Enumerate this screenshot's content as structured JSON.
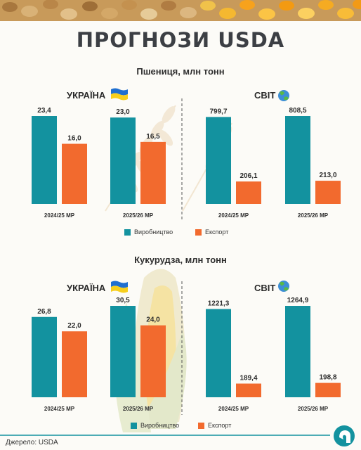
{
  "page": {
    "title": "ПРОГНОЗИ USDA",
    "source": "Джерело: USDA"
  },
  "colors": {
    "production": "#13929f",
    "export": "#f26a2e",
    "text": "#2e2e2e",
    "title": "#3c3f44"
  },
  "chart_data": [
    {
      "type": "bar",
      "title": "Пшениця, млн тонн",
      "panel": "УКРАЇНА",
      "categories": [
        "2024/25 МР",
        "2025/26 МР"
      ],
      "series": [
        {
          "name": "Виробництво",
          "values": [
            23.4,
            23.0
          ],
          "labels": [
            "23,4",
            "23,0"
          ]
        },
        {
          "name": "Експорт",
          "values": [
            16.0,
            16.5
          ],
          "labels": [
            "16,0",
            "16,5"
          ]
        }
      ]
    },
    {
      "type": "bar",
      "title": "Пшениця, млн тонн",
      "panel": "СВІТ",
      "categories": [
        "2024/25 МР",
        "2025/26 МР"
      ],
      "series": [
        {
          "name": "Виробництво",
          "values": [
            799.7,
            808.5
          ],
          "labels": [
            "799,7",
            "808,5"
          ]
        },
        {
          "name": "Експорт",
          "values": [
            206.1,
            213.0
          ],
          "labels": [
            "206,1",
            "213,0"
          ]
        }
      ]
    },
    {
      "type": "bar",
      "title": "Кукурудза, млн тонн",
      "panel": "УКРАЇНА",
      "categories": [
        "2024/25 МР",
        "2025/26 МР"
      ],
      "series": [
        {
          "name": "Виробництво",
          "values": [
            26.8,
            30.5
          ],
          "labels": [
            "26,8",
            "30,5"
          ]
        },
        {
          "name": "Експорт",
          "values": [
            22.0,
            24.0
          ],
          "labels": [
            "22,0",
            "24,0"
          ]
        }
      ]
    },
    {
      "type": "bar",
      "title": "Кукурудза, млн тонн",
      "panel": "СВІТ",
      "categories": [
        "2024/25 МР",
        "2025/26 МР"
      ],
      "series": [
        {
          "name": "Виробництво",
          "values": [
            1221.3,
            1264.9
          ],
          "labels": [
            "1221,3",
            "1264,9"
          ]
        },
        {
          "name": "Експорт",
          "values": [
            189.4,
            198.8
          ],
          "labels": [
            "189,4",
            "198,8"
          ]
        }
      ]
    }
  ],
  "legend": {
    "position": "bottom-center",
    "items": [
      "Виробництво",
      "Експорт"
    ]
  },
  "icons": {
    "ukraine": "ukraine-flag-icon",
    "world": "globe-icon",
    "logo": "brand-logo-icon"
  }
}
